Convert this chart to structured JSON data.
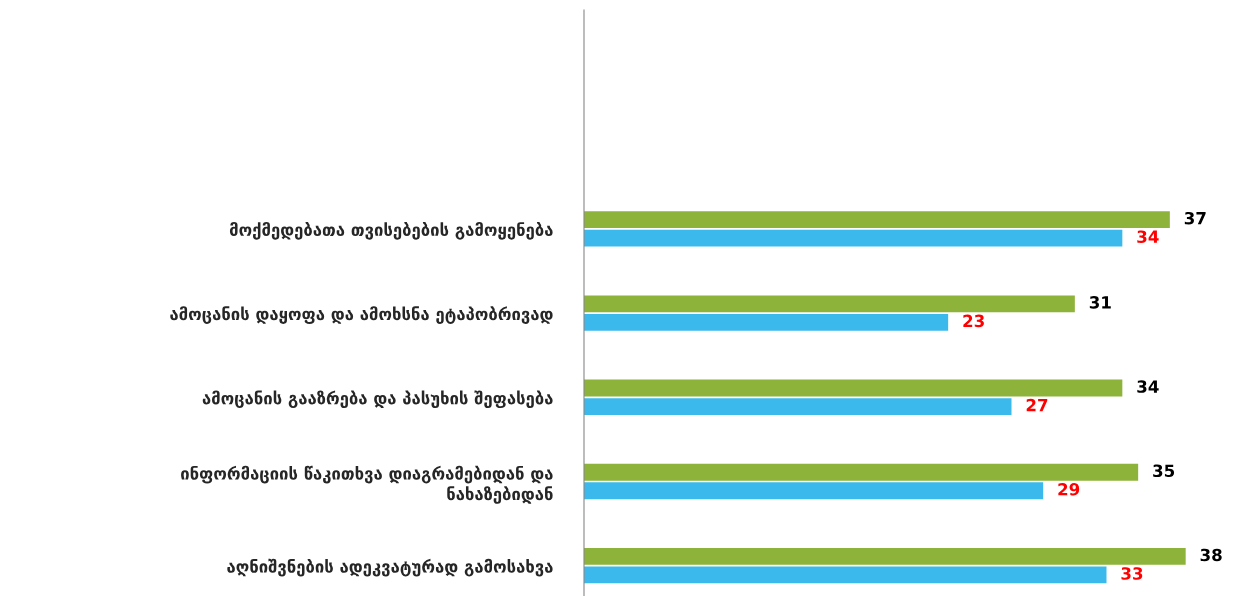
{
  "chart_data": {
    "type": "bar",
    "orientation": "horizontal",
    "data_labels": true,
    "categories": [
      "მოქმედებათა თვისებების გამოყენება",
      "ამოცანის დაყოფა და ამოხსნა ეტაპობრივად",
      "ამოცანის გააზრება და პასუხის შეფასება",
      "ინფორმაციის წაკითხვა დიაგრამებიდან და\nნახაზებიდან",
      "აღნიშვნების ადეკვატურად გამოსახვა"
    ],
    "series": [
      {
        "color": "#8db33a",
        "values": [
          37,
          31,
          34,
          35,
          38
        ]
      },
      {
        "color": "#3cb9ec",
        "values": [
          34,
          23,
          27,
          29,
          33
        ]
      }
    ],
    "legend": false,
    "grid": false
  }
}
